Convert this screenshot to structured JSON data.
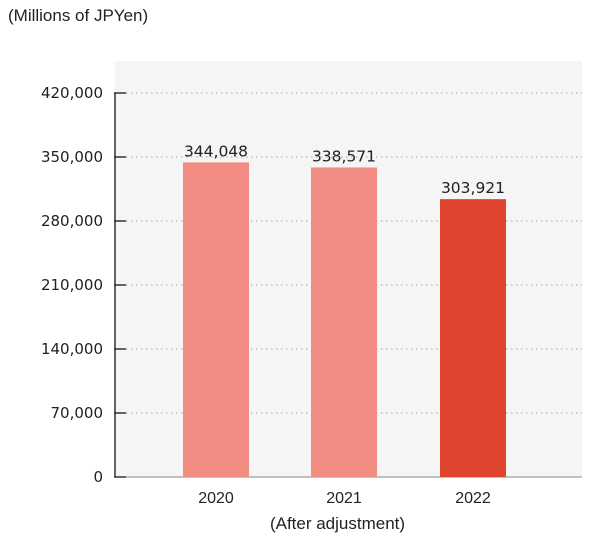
{
  "chart_data": {
    "type": "bar",
    "unit_label": "(Millions of JPYen)",
    "categories": [
      "2020",
      "2021",
      "2022"
    ],
    "values": [
      344048,
      338571,
      303921
    ],
    "value_labels": [
      "344,048",
      "338,571",
      "303,921"
    ],
    "y_ticks": [
      "0",
      "70,000",
      "140,000",
      "210,000",
      "280,000",
      "350,000",
      "420,000"
    ],
    "ylim": [
      0,
      420000
    ],
    "grid": "dotted",
    "xlabel": "(After adjustment)",
    "colors": {
      "bar_default": "#f28b82",
      "bar_highlight": "#e04530",
      "highlight_index": 2,
      "plot_background": "#f5f5f5",
      "grid": "#bfbfbf",
      "axis": "#333333"
    }
  }
}
